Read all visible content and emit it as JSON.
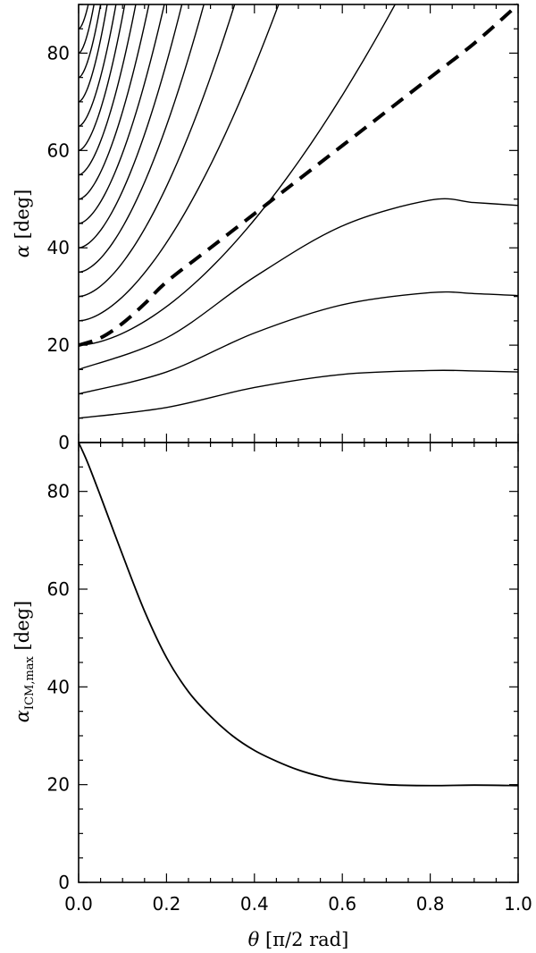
{
  "chart_data": [
    {
      "type": "line",
      "panel": "top",
      "xlim": [
        0,
        1
      ],
      "ylim": [
        0,
        90
      ],
      "xticks": [
        0,
        0.2,
        0.4,
        0.6,
        0.8,
        1.0
      ],
      "yticks": [
        0,
        20,
        40,
        60,
        80
      ],
      "ytick_labels": [
        "0",
        "20",
        "40",
        "60",
        "80"
      ],
      "ylabel_sym": "α",
      "ylabel_unit": " [deg]",
      "series_lower": [
        {
          "start": 5,
          "x": [
            0,
            0.2,
            0.4,
            0.6,
            0.8,
            0.9,
            1.0
          ],
          "y": [
            5,
            7.2,
            11.3,
            14.0,
            14.8,
            14.7,
            14.5
          ]
        },
        {
          "start": 10,
          "x": [
            0,
            0.2,
            0.4,
            0.6,
            0.8,
            0.9,
            1.0
          ],
          "y": [
            10,
            14.5,
            22.5,
            28.3,
            30.8,
            30.6,
            30.2
          ]
        },
        {
          "start": 15,
          "x": [
            0,
            0.2,
            0.4,
            0.6,
            0.8,
            0.9,
            1.0
          ],
          "y": [
            15,
            21.5,
            34.0,
            44.5,
            49.8,
            49.3,
            48.7
          ]
        }
      ],
      "series_upper_starts": [
        20,
        25,
        30,
        35,
        40,
        45,
        50,
        55,
        60,
        65,
        70,
        75,
        80,
        85
      ],
      "series_upper_ends_x": [
        0.72,
        0.455,
        0.355,
        0.285,
        0.235,
        0.195,
        0.16,
        0.13,
        0.105,
        0.085,
        0.065,
        0.05,
        0.035,
        0.022
      ],
      "dashed_series": {
        "x": [
          0,
          0.05,
          0.1,
          0.15,
          0.2,
          0.3,
          0.4,
          0.5,
          0.6,
          0.7,
          0.8,
          0.9,
          1.0
        ],
        "y": [
          20,
          21.5,
          24.5,
          28.5,
          33,
          40,
          47,
          54,
          61,
          68,
          75,
          82,
          90
        ]
      }
    },
    {
      "type": "line",
      "panel": "bottom",
      "xlim": [
        0,
        1
      ],
      "ylim": [
        0,
        90
      ],
      "xticks": [
        0,
        0.2,
        0.4,
        0.6,
        0.8,
        1.0
      ],
      "xtick_labels": [
        "0.0",
        "0.2",
        "0.4",
        "0.6",
        "0.8",
        "1.0"
      ],
      "yticks": [
        0,
        20,
        40,
        60,
        80
      ],
      "ytick_labels": [
        "0",
        "20",
        "40",
        "60",
        "80"
      ],
      "xlabel_sym": "θ",
      "xlabel_unit": " [π/2 rad]",
      "ylabel_sym": "α",
      "ylabel_sub": "ICM,max",
      "ylabel_unit": " [deg]",
      "series": [
        {
          "x": [
            0,
            0.02,
            0.05,
            0.1,
            0.15,
            0.2,
            0.25,
            0.3,
            0.35,
            0.4,
            0.45,
            0.5,
            0.55,
            0.6,
            0.7,
            0.8,
            0.9,
            1.0
          ],
          "y": [
            90,
            86,
            79,
            67,
            55.5,
            46,
            39,
            34,
            30,
            27,
            24.8,
            23,
            21.7,
            20.8,
            20.0,
            19.8,
            19.9,
            19.8
          ]
        }
      ]
    }
  ]
}
